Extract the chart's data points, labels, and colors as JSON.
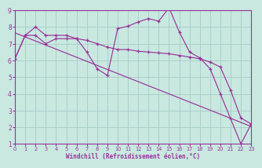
{
  "bg_color": "#c8e8e0",
  "line_color": "#993399",
  "grid_color": "#a8ccc8",
  "xlabel": "Windchill (Refroidissement éolien,°C)",
  "xlim": [
    0,
    23
  ],
  "ylim": [
    1,
    9
  ],
  "xticks": [
    0,
    1,
    2,
    3,
    4,
    5,
    6,
    7,
    8,
    9,
    10,
    11,
    12,
    13,
    14,
    15,
    16,
    17,
    18,
    19,
    20,
    21,
    22,
    23
  ],
  "yticks": [
    1,
    2,
    3,
    4,
    5,
    6,
    7,
    8,
    9
  ],
  "line1_x": [
    0,
    1,
    2,
    3,
    4,
    5,
    6,
    7,
    8,
    9,
    10,
    11,
    12,
    13,
    14,
    15,
    16,
    17,
    18,
    19,
    20,
    21,
    22,
    23
  ],
  "line1_y": [
    6.1,
    7.5,
    8.0,
    7.5,
    7.5,
    7.5,
    7.3,
    6.5,
    5.5,
    5.1,
    7.9,
    8.05,
    8.3,
    8.5,
    8.35,
    9.15,
    7.7,
    6.5,
    6.15,
    5.5,
    4.0,
    2.5,
    1.0,
    2.2
  ],
  "line2_x": [
    0,
    1,
    2,
    3,
    4,
    5,
    6,
    7,
    8,
    9,
    10,
    11,
    12,
    13,
    14,
    15,
    16,
    17,
    18,
    19,
    20,
    21,
    22,
    23
  ],
  "line2_y": [
    6.1,
    7.5,
    7.5,
    7.0,
    7.3,
    7.3,
    7.3,
    7.2,
    7.0,
    6.8,
    6.65,
    6.65,
    6.55,
    6.5,
    6.45,
    6.4,
    6.3,
    6.2,
    6.1,
    5.9,
    5.6,
    4.2,
    2.55,
    2.2
  ],
  "line3_x": [
    0,
    23
  ],
  "line3_y": [
    7.65,
    2.05
  ],
  "marker_size": 2.8,
  "line_width": 0.85,
  "tick_fontsize_x": 4.8,
  "tick_fontsize_y": 5.5,
  "xlabel_fontsize": 5.5
}
